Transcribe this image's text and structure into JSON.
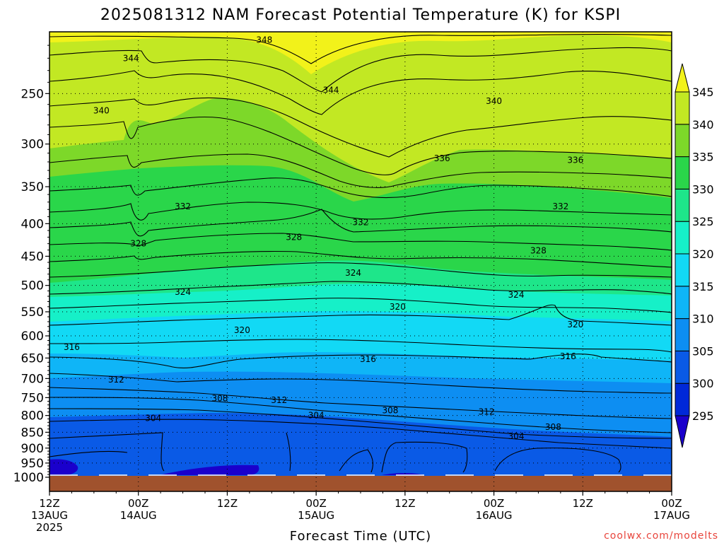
{
  "chart_data": {
    "type": "heatmap",
    "title": "2025081312 NAM Forecast Potential Temperature (K) for KSPI",
    "xlabel": "Forecast Time (UTC)",
    "ylabel": "",
    "y_scale": "log-pressure (inverted)",
    "ylim": [
      1000,
      200
    ],
    "grid": "dotted",
    "x_ticks": [
      {
        "lines": [
          "12Z",
          "13AUG",
          "2025"
        ]
      },
      {
        "lines": [
          "00Z",
          "14AUG"
        ]
      },
      {
        "lines": [
          "12Z"
        ]
      },
      {
        "lines": [
          "00Z",
          "15AUG"
        ]
      },
      {
        "lines": [
          "12Z"
        ]
      },
      {
        "lines": [
          "00Z",
          "16AUG"
        ]
      },
      {
        "lines": [
          "12Z"
        ]
      },
      {
        "lines": [
          "00Z",
          "17AUG"
        ]
      }
    ],
    "y_ticks": [
      250,
      300,
      350,
      400,
      450,
      500,
      550,
      600,
      650,
      700,
      750,
      800,
      850,
      900,
      950,
      1000
    ],
    "colorbar": {
      "levels": [
        295,
        300,
        305,
        310,
        315,
        320,
        325,
        330,
        335,
        340,
        345
      ],
      "colors": [
        "#1a00cc",
        "#0028d8",
        "#0a5ae6",
        "#0d8ef2",
        "#0fb5f7",
        "#12d9f5",
        "#16f0c8",
        "#1ee68a",
        "#2ad64a",
        "#7dd829",
        "#c2e823",
        "#f2f21a"
      ],
      "extend": "both"
    },
    "contour_labels": [
      {
        "text": "348",
        "time_h": 29,
        "p": 206
      },
      {
        "text": "344",
        "time_h": 11,
        "p": 220
      },
      {
        "text": "344",
        "time_h": 38,
        "p": 247
      },
      {
        "text": "340",
        "time_h": 7,
        "p": 266
      },
      {
        "text": "340",
        "time_h": 60,
        "p": 257
      },
      {
        "text": "336",
        "time_h": 53,
        "p": 316
      },
      {
        "text": "336",
        "time_h": 71,
        "p": 318
      },
      {
        "text": "332",
        "time_h": 18,
        "p": 376
      },
      {
        "text": "332",
        "time_h": 42,
        "p": 398
      },
      {
        "text": "332",
        "time_h": 69,
        "p": 376
      },
      {
        "text": "328",
        "time_h": 12,
        "p": 430
      },
      {
        "text": "328",
        "time_h": 33,
        "p": 420
      },
      {
        "text": "328",
        "time_h": 66,
        "p": 441
      },
      {
        "text": "324",
        "time_h": 18,
        "p": 512
      },
      {
        "text": "324",
        "time_h": 41,
        "p": 478
      },
      {
        "text": "324",
        "time_h": 63,
        "p": 517
      },
      {
        "text": "320",
        "time_h": 26,
        "p": 588
      },
      {
        "text": "320",
        "time_h": 47,
        "p": 540
      },
      {
        "text": "320",
        "time_h": 71,
        "p": 576
      },
      {
        "text": "316",
        "time_h": 3,
        "p": 625
      },
      {
        "text": "316",
        "time_h": 43,
        "p": 653
      },
      {
        "text": "316",
        "time_h": 70,
        "p": 646
      },
      {
        "text": "312",
        "time_h": 9,
        "p": 703
      },
      {
        "text": "312",
        "time_h": 31,
        "p": 757
      },
      {
        "text": "312",
        "time_h": 59,
        "p": 790
      },
      {
        "text": "308",
        "time_h": 23,
        "p": 752
      },
      {
        "text": "308",
        "time_h": 46,
        "p": 786
      },
      {
        "text": "308",
        "time_h": 68,
        "p": 834
      },
      {
        "text": "304",
        "time_h": 14,
        "p": 808
      },
      {
        "text": "304",
        "time_h": 36,
        "p": 800
      },
      {
        "text": "304",
        "time_h": 63,
        "p": 862
      }
    ]
  },
  "credit": "coolwx.com/modelts"
}
